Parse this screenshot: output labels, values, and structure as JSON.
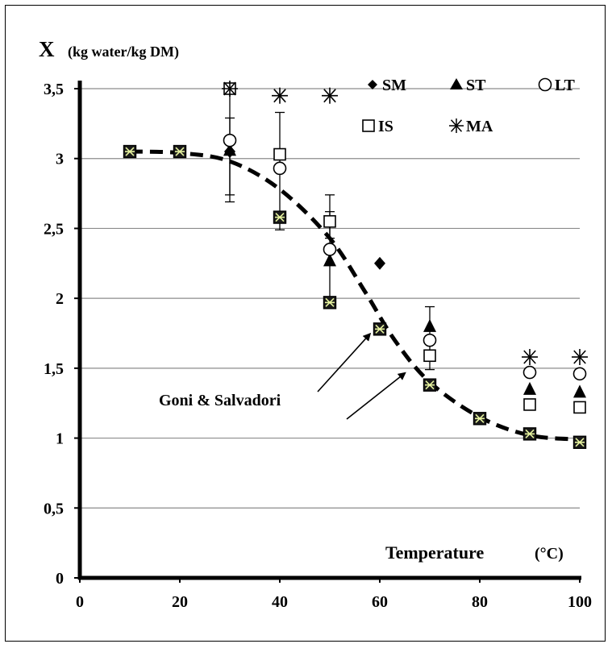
{
  "chart_data": {
    "type": "scatter",
    "title": "",
    "ylabel_symbol": "X",
    "ylabel_unit": "(kg water/kg DM)",
    "xlabel": "Temperature",
    "xlabel_unit": "(°C)",
    "xlim": [
      0,
      100
    ],
    "ylim": [
      0,
      3.5
    ],
    "x_ticks": [
      "0",
      "20",
      "40",
      "60",
      "80",
      "100"
    ],
    "y_ticks": [
      "0",
      "0,5",
      "1",
      "1,5",
      "2",
      "2,5",
      "3",
      "3,5"
    ],
    "grid": "horizontal",
    "legend_position": "top-right",
    "legend": [
      {
        "symbol": "diamond",
        "label": "SM"
      },
      {
        "symbol": "triangle",
        "label": "ST"
      },
      {
        "symbol": "circle",
        "label": "LT"
      },
      {
        "symbol": "square",
        "label": "IS"
      },
      {
        "symbol": "star",
        "label": "MA"
      }
    ],
    "series": [
      {
        "name": "SM",
        "marker": "diamond",
        "points": [
          {
            "x": 30,
            "y": 3.05
          },
          {
            "x": 40,
            "y": 2.58
          },
          {
            "x": 50,
            "y": 1.97
          },
          {
            "x": 60,
            "y": 2.25
          },
          {
            "x": 70,
            "y": 1.38
          }
        ]
      },
      {
        "name": "ST",
        "marker": "triangle",
        "points": [
          {
            "x": 30,
            "y": 3.06
          },
          {
            "x": 50,
            "y": 2.27
          },
          {
            "x": 70,
            "y": 1.8
          },
          {
            "x": 90,
            "y": 1.35
          },
          {
            "x": 100,
            "y": 1.33
          }
        ]
      },
      {
        "name": "LT",
        "marker": "circle",
        "points": [
          {
            "x": 30,
            "y": 3.13
          },
          {
            "x": 40,
            "y": 2.93
          },
          {
            "x": 50,
            "y": 2.35
          },
          {
            "x": 70,
            "y": 1.7
          },
          {
            "x": 90,
            "y": 1.47
          },
          {
            "x": 100,
            "y": 1.46
          }
        ]
      },
      {
        "name": "IS",
        "marker": "square",
        "points": [
          {
            "x": 30,
            "y": 3.5
          },
          {
            "x": 40,
            "y": 3.03
          },
          {
            "x": 50,
            "y": 2.55
          },
          {
            "x": 70,
            "y": 1.59
          },
          {
            "x": 90,
            "y": 1.24
          },
          {
            "x": 100,
            "y": 1.22
          }
        ]
      },
      {
        "name": "MA",
        "marker": "star",
        "points": [
          {
            "x": 30,
            "y": 3.5
          },
          {
            "x": 40,
            "y": 3.45
          },
          {
            "x": 50,
            "y": 3.45
          },
          {
            "x": 90,
            "y": 1.58
          },
          {
            "x": 100,
            "y": 1.58
          }
        ]
      },
      {
        "name": "Goni & Salvadori",
        "marker": "square-star",
        "points": [
          {
            "x": 10,
            "y": 3.05
          },
          {
            "x": 20,
            "y": 3.05
          },
          {
            "x": 40,
            "y": 2.58
          },
          {
            "x": 50,
            "y": 1.97
          },
          {
            "x": 60,
            "y": 1.78
          },
          {
            "x": 70,
            "y": 1.38
          },
          {
            "x": 80,
            "y": 1.14
          },
          {
            "x": 90,
            "y": 1.03
          },
          {
            "x": 100,
            "y": 0.97
          }
        ]
      }
    ],
    "fit_curve": {
      "style": "dashed",
      "points": [
        [
          10,
          3.05
        ],
        [
          20,
          3.04
        ],
        [
          30,
          2.98
        ],
        [
          40,
          2.78
        ],
        [
          50,
          2.43
        ],
        [
          57,
          2.05
        ],
        [
          63,
          1.7
        ],
        [
          70,
          1.4
        ],
        [
          80,
          1.15
        ],
        [
          90,
          1.02
        ],
        [
          100,
          0.99
        ]
      ]
    },
    "error_bars": [
      {
        "x": 30,
        "center": 3.05,
        "low": 2.69,
        "high": 3.5
      },
      {
        "x": 30,
        "center": 3.1,
        "low": 2.74,
        "high": 3.29
      },
      {
        "x": 40,
        "center": 3.03,
        "low": 2.49,
        "high": 3.33
      },
      {
        "x": 50,
        "center": 2.55,
        "low": 2.43,
        "high": 2.74
      },
      {
        "x": 50,
        "center": 2.27,
        "low": 1.97,
        "high": 2.62
      },
      {
        "x": 70,
        "center": 1.8,
        "low": 1.69,
        "high": 1.94
      },
      {
        "x": 70,
        "center": 1.59,
        "low": 1.49,
        "high": 1.71
      }
    ],
    "annotation": {
      "text": "Goni & Salvadori",
      "arrows_to": [
        [
          59,
          1.78
        ],
        [
          66,
          1.5
        ]
      ]
    }
  }
}
